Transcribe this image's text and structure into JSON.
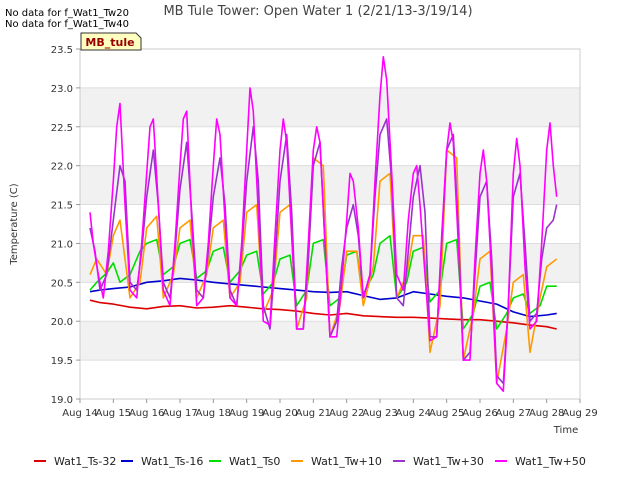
{
  "notes": [
    "No data for f_Wat1_Tw20",
    "No data for f_Wat1_Tw40"
  ],
  "station_label": "MB_tule",
  "chart_data": {
    "type": "line",
    "title": "MB Tule Tower: Open Water 1 (2/21/13-3/19/14)",
    "xlabel": "Time",
    "ylabel": "Temperature (C)",
    "ylim": [
      19.0,
      23.5
    ],
    "xlim": [
      14,
      29
    ],
    "x_ticks": [
      14,
      15,
      16,
      17,
      18,
      19,
      20,
      21,
      22,
      23,
      24,
      25,
      26,
      27,
      28,
      29
    ],
    "x_tick_labels": [
      "Aug 14",
      "Aug 15",
      "Aug 16",
      "Aug 17",
      "Aug 18",
      "Aug 19",
      "Aug 20",
      "Aug 21",
      "Aug 22",
      "Aug 23",
      "Aug 24",
      "Aug 25",
      "Aug 26",
      "Aug 27",
      "Aug 28",
      "Aug 29"
    ],
    "y_ticks": [
      19.0,
      19.5,
      20.0,
      20.5,
      21.0,
      21.5,
      22.0,
      22.5,
      23.0,
      23.5
    ],
    "y_tick_labels": [
      "19.0",
      "19.5",
      "20.0",
      "20.5",
      "21.0",
      "21.5",
      "22.0",
      "22.5",
      "23.0",
      "23.5"
    ],
    "grid": "horizontal bands",
    "legend": "bottom",
    "series": [
      {
        "name": "Wat1_Ts-32",
        "color": "#dd0000",
        "x": [
          14.3,
          14.6,
          15.0,
          15.5,
          16.0,
          16.5,
          17.0,
          17.5,
          18.0,
          18.5,
          19.0,
          19.5,
          20.0,
          20.5,
          21.0,
          21.5,
          22.0,
          22.5,
          23.0,
          23.5,
          24.0,
          24.5,
          25.0,
          25.5,
          26.0,
          26.5,
          27.0,
          27.5,
          28.0,
          28.3
        ],
        "values": [
          20.27,
          20.24,
          20.22,
          20.18,
          20.16,
          20.19,
          20.2,
          20.17,
          20.18,
          20.2,
          20.18,
          20.16,
          20.15,
          20.13,
          20.1,
          20.08,
          20.1,
          20.07,
          20.06,
          20.05,
          20.05,
          20.04,
          20.03,
          20.02,
          20.02,
          20.0,
          19.98,
          19.95,
          19.93,
          19.9
        ]
      },
      {
        "name": "Wat1_Ts-16",
        "color": "#0000cc",
        "x": [
          14.3,
          14.6,
          15.0,
          15.5,
          16.0,
          16.5,
          17.0,
          17.5,
          18.0,
          18.5,
          19.0,
          19.5,
          20.0,
          20.5,
          21.0,
          21.5,
          22.0,
          22.5,
          23.0,
          23.5,
          24.0,
          24.5,
          25.0,
          25.5,
          26.0,
          26.5,
          27.0,
          27.5,
          28.0,
          28.3
        ],
        "values": [
          20.38,
          20.4,
          20.42,
          20.44,
          20.5,
          20.52,
          20.55,
          20.53,
          20.5,
          20.48,
          20.46,
          20.44,
          20.42,
          20.4,
          20.38,
          20.37,
          20.38,
          20.33,
          20.28,
          20.3,
          20.38,
          20.35,
          20.32,
          20.3,
          20.26,
          20.22,
          20.12,
          20.06,
          20.08,
          20.1
        ]
      },
      {
        "name": "Wat1_Ts0",
        "color": "#00dd00",
        "x": [
          14.3,
          14.5,
          14.8,
          15.0,
          15.2,
          15.5,
          15.8,
          16.0,
          16.3,
          16.5,
          16.8,
          17.0,
          17.3,
          17.5,
          17.8,
          18.0,
          18.3,
          18.5,
          18.8,
          19.0,
          19.3,
          19.5,
          19.8,
          20.0,
          20.3,
          20.5,
          20.8,
          21.0,
          21.3,
          21.5,
          21.8,
          22.0,
          22.3,
          22.5,
          22.8,
          23.0,
          23.3,
          23.5,
          23.8,
          24.0,
          24.3,
          24.5,
          24.8,
          25.0,
          25.3,
          25.5,
          25.8,
          26.0,
          26.3,
          26.5,
          26.8,
          27.0,
          27.3,
          27.5,
          27.8,
          28.0,
          28.3
        ],
        "values": [
          20.4,
          20.5,
          20.62,
          20.75,
          20.5,
          20.6,
          20.9,
          21.0,
          21.05,
          20.6,
          20.7,
          21.0,
          21.05,
          20.55,
          20.65,
          20.9,
          20.95,
          20.5,
          20.65,
          20.85,
          20.9,
          20.35,
          20.5,
          20.8,
          20.85,
          20.2,
          20.4,
          21.0,
          21.05,
          20.2,
          20.3,
          20.85,
          20.9,
          20.35,
          20.6,
          21.0,
          21.1,
          20.3,
          20.5,
          20.9,
          20.95,
          20.25,
          20.4,
          21.0,
          21.05,
          19.9,
          20.1,
          20.45,
          20.5,
          19.9,
          20.1,
          20.3,
          20.35,
          20.1,
          20.2,
          20.45,
          20.45
        ]
      },
      {
        "name": "Wat1_Tw+10",
        "color": "#ff9900",
        "x": [
          14.3,
          14.5,
          14.8,
          15.0,
          15.2,
          15.5,
          15.8,
          16.0,
          16.3,
          16.5,
          16.8,
          17.0,
          17.3,
          17.5,
          17.8,
          18.0,
          18.3,
          18.5,
          18.8,
          19.0,
          19.3,
          19.5,
          19.8,
          20.0,
          20.3,
          20.5,
          20.8,
          21.0,
          21.3,
          21.5,
          21.8,
          22.0,
          22.3,
          22.5,
          22.8,
          23.0,
          23.3,
          23.5,
          23.8,
          24.0,
          24.3,
          24.5,
          24.8,
          25.0,
          25.3,
          25.5,
          25.8,
          26.0,
          26.3,
          26.5,
          26.8,
          27.0,
          27.3,
          27.5,
          27.8,
          28.0,
          28.3
        ],
        "values": [
          20.6,
          20.8,
          20.6,
          21.1,
          21.3,
          20.3,
          20.5,
          21.2,
          21.35,
          20.3,
          20.6,
          21.2,
          21.3,
          20.3,
          20.6,
          21.2,
          21.3,
          20.3,
          20.5,
          21.4,
          21.5,
          20.1,
          20.4,
          21.4,
          21.5,
          19.9,
          20.3,
          22.1,
          22.0,
          19.8,
          20.2,
          20.9,
          20.9,
          20.2,
          20.7,
          21.8,
          21.9,
          20.3,
          20.6,
          21.1,
          21.1,
          19.6,
          20.2,
          22.2,
          22.1,
          19.5,
          20.1,
          20.8,
          20.9,
          19.2,
          19.9,
          20.5,
          20.6,
          19.6,
          20.3,
          20.7,
          20.8
        ]
      },
      {
        "name": "Wat1_Tw+30",
        "color": "#9933cc",
        "x": [
          14.3,
          14.45,
          14.6,
          14.8,
          15.0,
          15.2,
          15.35,
          15.5,
          15.7,
          15.85,
          16.0,
          16.2,
          16.35,
          16.5,
          16.7,
          16.85,
          17.0,
          17.2,
          17.35,
          17.5,
          17.7,
          17.85,
          18.0,
          18.2,
          18.35,
          18.5,
          18.7,
          18.85,
          19.0,
          19.2,
          19.35,
          19.5,
          19.7,
          19.85,
          20.0,
          20.2,
          20.35,
          20.5,
          20.7,
          20.85,
          21.0,
          21.2,
          21.35,
          21.5,
          21.7,
          21.85,
          22.0,
          22.2,
          22.35,
          22.5,
          22.7,
          22.85,
          23.0,
          23.2,
          23.35,
          23.5,
          23.7,
          23.85,
          24.0,
          24.2,
          24.35,
          24.5,
          24.7,
          24.85,
          25.0,
          25.2,
          25.35,
          25.5,
          25.7,
          25.85,
          26.0,
          26.2,
          26.35,
          26.5,
          26.7,
          26.85,
          27.0,
          27.2,
          27.35,
          27.5,
          27.7,
          27.85,
          28.0,
          28.2,
          28.3
        ],
        "values": [
          21.2,
          20.9,
          20.4,
          20.6,
          21.3,
          22.0,
          21.8,
          20.5,
          20.4,
          20.9,
          21.6,
          22.2,
          21.5,
          20.5,
          20.3,
          20.9,
          21.7,
          22.3,
          21.4,
          20.4,
          20.3,
          20.9,
          21.6,
          22.1,
          21.5,
          20.4,
          20.2,
          20.9,
          21.8,
          22.5,
          21.8,
          20.2,
          19.9,
          20.8,
          21.8,
          22.4,
          21.4,
          19.9,
          19.9,
          20.8,
          22.0,
          22.3,
          21.0,
          19.8,
          20.0,
          20.7,
          21.2,
          21.5,
          21.1,
          20.3,
          20.6,
          21.6,
          22.4,
          22.6,
          21.8,
          20.3,
          20.2,
          20.9,
          21.6,
          22.0,
          21.4,
          19.8,
          19.8,
          21.0,
          22.2,
          22.4,
          21.2,
          19.5,
          19.6,
          20.6,
          21.6,
          21.8,
          20.8,
          19.3,
          19.2,
          20.2,
          21.6,
          21.9,
          21.0,
          20.0,
          20.1,
          20.8,
          21.2,
          21.3,
          21.5
        ]
      },
      {
        "name": "Wat1_Tw+50",
        "color": "#ff00ff",
        "x": [
          14.3,
          14.4,
          14.55,
          14.7,
          14.85,
          15.0,
          15.1,
          15.2,
          15.35,
          15.5,
          15.7,
          15.85,
          16.0,
          16.1,
          16.2,
          16.35,
          16.5,
          16.7,
          16.85,
          17.0,
          17.1,
          17.2,
          17.35,
          17.5,
          17.7,
          17.85,
          18.0,
          18.1,
          18.2,
          18.35,
          18.5,
          18.7,
          18.85,
          19.0,
          19.1,
          19.2,
          19.35,
          19.5,
          19.7,
          19.85,
          20.0,
          20.1,
          20.2,
          20.35,
          20.5,
          20.7,
          20.85,
          21.0,
          21.1,
          21.2,
          21.35,
          21.5,
          21.7,
          21.85,
          22.0,
          22.1,
          22.2,
          22.35,
          22.5,
          22.7,
          22.85,
          23.0,
          23.1,
          23.2,
          23.35,
          23.5,
          23.7,
          23.85,
          24.0,
          24.1,
          24.2,
          24.35,
          24.5,
          24.7,
          24.85,
          25.0,
          25.1,
          25.2,
          25.35,
          25.5,
          25.7,
          25.85,
          26.0,
          26.1,
          26.2,
          26.35,
          26.5,
          26.7,
          26.85,
          27.0,
          27.1,
          27.2,
          27.35,
          27.5,
          27.7,
          27.85,
          28.0,
          28.1,
          28.2,
          28.3
        ],
        "values": [
          21.4,
          21.0,
          20.6,
          20.3,
          20.9,
          21.8,
          22.5,
          22.8,
          21.5,
          20.4,
          20.3,
          21.0,
          21.9,
          22.5,
          22.6,
          21.5,
          20.4,
          20.2,
          21.0,
          22.0,
          22.6,
          22.7,
          21.3,
          20.2,
          20.3,
          21.0,
          22.0,
          22.6,
          22.4,
          21.3,
          20.3,
          20.2,
          21.0,
          22.2,
          23.0,
          22.7,
          21.4,
          20.0,
          19.95,
          21.1,
          22.2,
          22.6,
          22.3,
          21.1,
          19.9,
          19.9,
          21.0,
          22.2,
          22.5,
          22.3,
          21.0,
          19.8,
          19.8,
          20.5,
          21.3,
          21.9,
          21.8,
          21.2,
          20.3,
          20.6,
          21.8,
          22.9,
          23.4,
          23.1,
          21.9,
          20.6,
          20.4,
          21.3,
          21.9,
          22.0,
          21.5,
          20.6,
          19.75,
          19.8,
          21.1,
          22.2,
          22.55,
          22.3,
          21.0,
          19.5,
          19.5,
          20.8,
          21.9,
          22.2,
          21.8,
          20.6,
          19.2,
          19.1,
          20.2,
          21.9,
          22.35,
          22.0,
          20.7,
          19.9,
          20.0,
          21.0,
          22.2,
          22.55,
          22.0,
          21.6
        ]
      }
    ]
  }
}
